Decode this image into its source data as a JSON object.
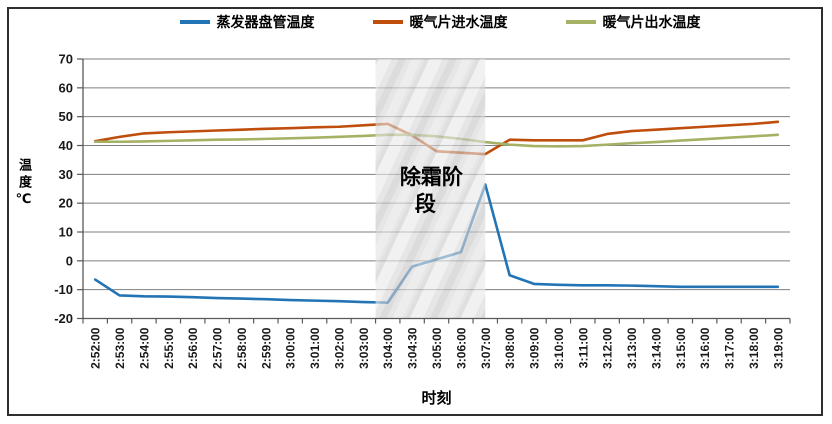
{
  "chart_data": {
    "type": "line",
    "xlabel": "时刻",
    "ylabel": "温度℃",
    "ylim": [
      -20,
      70
    ],
    "y_step": 10,
    "y_ticks": [
      70,
      60,
      50,
      40,
      30,
      20,
      10,
      0,
      -10,
      -20
    ],
    "grid": true,
    "legend_position": "top",
    "categories": [
      "2:52:00",
      "2:53:00",
      "2:54:00",
      "2:55:00",
      "2:56:00",
      "2:57:00",
      "2:58:00",
      "2:59:00",
      "3:00:00",
      "3:01:00",
      "3:02:00",
      "3:03:00",
      "3:04:00",
      "3:04:30",
      "3:05:00",
      "3:06:00",
      "3:07:00",
      "3:08:00",
      "3:09:00",
      "3:10:00",
      "3:11:00",
      "3:12:00",
      "3:13:00",
      "3:14:00",
      "3:15:00",
      "3:16:00",
      "3:17:00",
      "3:18:00",
      "3:19:00"
    ],
    "series": [
      {
        "id": "evaporator-coil-temp",
        "name": "蒸发器盘管温度",
        "color": "#2374B5",
        "values": [
          -6.5,
          -12,
          -12.3,
          -12.4,
          -12.6,
          -12.9,
          -13.1,
          -13.3,
          -13.6,
          -13.8,
          -14,
          -14.3,
          -14.5,
          -2,
          0.5,
          3,
          26.5,
          -5,
          -8,
          -8.3,
          -8.5,
          -8.5,
          -8.6,
          -8.8,
          -9,
          -9,
          -9,
          -9,
          -9
        ]
      },
      {
        "id": "radiator-inlet-water-temp",
        "name": "暖气片进水温度",
        "color": "#BF4E0D",
        "values": [
          41.5,
          43,
          44.2,
          44.6,
          44.9,
          45.2,
          45.5,
          45.8,
          46,
          46.3,
          46.5,
          47,
          47.5,
          43.5,
          38,
          37.5,
          37,
          42,
          41.8,
          41.8,
          41.8,
          44,
          45,
          45.5,
          46,
          46.5,
          47,
          47.5,
          48.2
        ]
      },
      {
        "id": "radiator-outlet-water-temp",
        "name": "暖气片出水温度",
        "color": "#A5B266",
        "values": [
          41.3,
          41.3,
          41.4,
          41.6,
          41.8,
          42,
          42.1,
          42.3,
          42.5,
          42.7,
          43,
          43.3,
          43.7,
          43.7,
          43.2,
          42.3,
          41.2,
          40.3,
          39.8,
          39.7,
          39.8,
          40.3,
          40.8,
          41.2,
          41.7,
          42.2,
          42.7,
          43.2,
          43.7
        ]
      }
    ],
    "annotation": {
      "text": "除霜阶段",
      "from_category": "3:04:00",
      "to_category": "3:07:00",
      "band_color": "#d7d7d7"
    }
  }
}
